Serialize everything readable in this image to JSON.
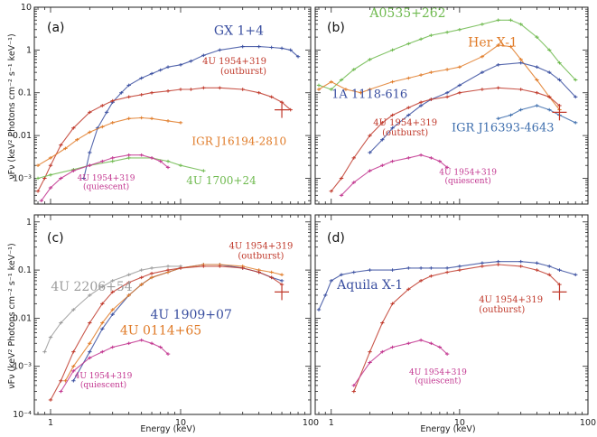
{
  "figure": {
    "ylabel": "νFν (keV² Photons cm⁻² s⁻¹ keV⁻¹)",
    "xlabel": "Energy (keV)",
    "x_ticks": [
      "1",
      "10",
      "100"
    ],
    "y_ticks_top": [
      "10",
      "1",
      "0.1",
      "0.01",
      "10⁻³"
    ],
    "y_ticks_bottom": [
      "1",
      "0.1",
      "0.01",
      "10⁻³",
      "10⁻⁴"
    ]
  },
  "chart_data": [
    {
      "type": "scatter",
      "panel": "(a)",
      "xlim": [
        0.75,
        100
      ],
      "ylim": [
        0.00025,
        10
      ],
      "xscale": "log",
      "yscale": "log",
      "series": [
        {
          "name": "GX 1+4",
          "color": "#3a4fa0",
          "label_lines": [
            "GX 1+4"
          ],
          "label_size": 14,
          "x": [
            1.8,
            2,
            2.3,
            2.7,
            3,
            3.5,
            4,
            5,
            6,
            7,
            8,
            10,
            12,
            15,
            20,
            30,
            40,
            50,
            60,
            70,
            80
          ],
          "y": [
            0.001,
            0.004,
            0.015,
            0.035,
            0.06,
            0.1,
            0.15,
            0.22,
            0.28,
            0.34,
            0.4,
            0.45,
            0.55,
            0.75,
            1.0,
            1.2,
            1.2,
            1.15,
            1.1,
            1.0,
            0.7
          ]
        },
        {
          "name": "4U 1954+319 (outburst)",
          "color": "#c0392b",
          "label_lines": [
            "4U 1954+319",
            "(outburst)"
          ],
          "label_size": 10,
          "x": [
            0.8,
            0.9,
            1,
            1.2,
            1.5,
            2,
            2.5,
            3,
            4,
            5,
            6,
            8,
            10,
            12,
            15,
            20,
            30,
            40,
            50,
            60,
            70
          ],
          "y": [
            0.0005,
            0.001,
            0.002,
            0.006,
            0.015,
            0.035,
            0.05,
            0.065,
            0.08,
            0.09,
            0.1,
            0.11,
            0.12,
            0.12,
            0.13,
            0.13,
            0.12,
            0.1,
            0.08,
            0.06,
            0.04
          ]
        },
        {
          "name": "IGR J16194-2810",
          "color": "#e07b28",
          "label_lines": [
            "IGR J16194-2810"
          ],
          "label_size": 12,
          "x": [
            0.8,
            1,
            1.3,
            1.6,
            2,
            2.5,
            3,
            4,
            5,
            6,
            8,
            10
          ],
          "y": [
            0.002,
            0.003,
            0.005,
            0.008,
            0.012,
            0.016,
            0.02,
            0.025,
            0.026,
            0.025,
            0.022,
            0.02
          ]
        },
        {
          "name": "4U 1700+24",
          "color": "#6fba4f",
          "label_lines": [
            "4U 1700+24"
          ],
          "label_size": 12,
          "x": [
            0.8,
            1,
            1.5,
            2,
            3,
            4,
            6,
            8,
            10,
            15
          ],
          "y": [
            0.001,
            0.0012,
            0.0016,
            0.002,
            0.0025,
            0.003,
            0.003,
            0.0025,
            0.002,
            0.0015
          ]
        },
        {
          "name": "4U 1954+319 (quiescent)",
          "color": "#c2358f",
          "label_lines": [
            "4U 1954+319",
            "(quiescent)"
          ],
          "label_size": 9,
          "x": [
            0.85,
            1,
            1.2,
            1.5,
            2,
            2.5,
            3,
            4,
            5,
            6,
            7,
            8
          ],
          "y": [
            0.0003,
            0.0006,
            0.001,
            0.0015,
            0.002,
            0.0025,
            0.003,
            0.0035,
            0.0035,
            0.003,
            0.0025,
            0.0018
          ]
        }
      ]
    },
    {
      "type": "scatter",
      "panel": "(b)",
      "xlim": [
        0.75,
        100
      ],
      "ylim": [
        0.00025,
        10
      ],
      "xscale": "log",
      "yscale": "log",
      "series": [
        {
          "name": "A0535+262",
          "color": "#6fba4f",
          "label_lines": [
            "A0535+262"
          ],
          "label_size": 14,
          "x": [
            0.8,
            1,
            1.2,
            1.5,
            2,
            3,
            4,
            5,
            6,
            8,
            10,
            15,
            20,
            25,
            30,
            40,
            50,
            60,
            80
          ],
          "y": [
            0.15,
            0.12,
            0.2,
            0.35,
            0.6,
            1.0,
            1.4,
            1.8,
            2.2,
            2.6,
            3.0,
            4.0,
            5.0,
            5.0,
            4.0,
            2.0,
            1.0,
            0.5,
            0.2
          ]
        },
        {
          "name": "Her X-1",
          "color": "#e07b28",
          "label_lines": [
            "Her X-1"
          ],
          "label_size": 14,
          "x": [
            0.8,
            1,
            1.3,
            1.7,
            2,
            3,
            4,
            5,
            6,
            8,
            10,
            15,
            20,
            25,
            30,
            40,
            50,
            60
          ],
          "y": [
            0.12,
            0.18,
            0.12,
            0.1,
            0.12,
            0.18,
            0.22,
            0.26,
            0.3,
            0.35,
            0.4,
            0.7,
            1.3,
            1.2,
            0.6,
            0.2,
            0.08,
            0.04
          ]
        },
        {
          "name": "1A 1118-616",
          "color": "#3a4fa0",
          "label_lines": [
            "1A 1118-616"
          ],
          "label_size": 13,
          "x": [
            2,
            2.5,
            3,
            4,
            5,
            6,
            8,
            10,
            15,
            20,
            30,
            40,
            50,
            60,
            80
          ],
          "y": [
            0.004,
            0.008,
            0.015,
            0.03,
            0.05,
            0.07,
            0.1,
            0.15,
            0.3,
            0.45,
            0.5,
            0.4,
            0.3,
            0.2,
            0.08
          ]
        },
        {
          "name": "4U 1954+319 (outburst)",
          "color": "#c0392b",
          "label_lines": [
            "4U 1954+319",
            "(outburst)"
          ],
          "label_size": 10,
          "x": [
            1,
            1.2,
            1.5,
            2,
            2.5,
            3,
            4,
            5,
            6,
            8,
            10,
            15,
            20,
            30,
            40,
            50,
            60
          ],
          "y": [
            0.0005,
            0.001,
            0.003,
            0.01,
            0.02,
            0.03,
            0.045,
            0.06,
            0.07,
            0.08,
            0.1,
            0.12,
            0.13,
            0.12,
            0.1,
            0.08,
            0.05
          ]
        },
        {
          "name": "IGR J16393-4643",
          "color": "#3f6fae",
          "label_lines": [
            "IGR J16393-4643"
          ],
          "label_size": 13,
          "x": [
            20,
            25,
            30,
            40,
            50,
            60,
            80
          ],
          "y": [
            0.025,
            0.03,
            0.04,
            0.05,
            0.04,
            0.03,
            0.02
          ]
        },
        {
          "name": "4U 1954+319 (quiescent)",
          "color": "#c2358f",
          "label_lines": [
            "4U 1954+319",
            "(quiescent)"
          ],
          "label_size": 9,
          "x": [
            1.2,
            1.5,
            2,
            2.5,
            3,
            4,
            5,
            6,
            7,
            8
          ],
          "y": [
            0.0004,
            0.0008,
            0.0015,
            0.002,
            0.0025,
            0.003,
            0.0035,
            0.003,
            0.0025,
            0.0018
          ]
        }
      ]
    },
    {
      "type": "scatter",
      "panel": "(c)",
      "xlim": [
        0.75,
        100
      ],
      "ylim": [
        0.0001,
        1.4
      ],
      "xscale": "log",
      "yscale": "log",
      "series": [
        {
          "name": "4U 2206+54",
          "color": "#9b9b9b",
          "label_lines": [
            "4U 2206+54"
          ],
          "label_size": 14,
          "x": [
            0.9,
            1,
            1.2,
            1.5,
            2,
            2.5,
            3,
            4,
            5,
            6,
            8,
            10
          ],
          "y": [
            0.002,
            0.004,
            0.008,
            0.015,
            0.03,
            0.045,
            0.06,
            0.08,
            0.1,
            0.11,
            0.12,
            0.12
          ]
        },
        {
          "name": "4U 1909+07",
          "color": "#3a4fa0",
          "label_lines": [
            "4U 1909+07"
          ],
          "label_size": 14,
          "x": [
            1.5,
            2,
            2.5,
            3,
            4,
            5,
            6,
            8,
            10,
            15,
            20,
            30,
            40,
            50,
            60
          ],
          "y": [
            0.0005,
            0.002,
            0.006,
            0.012,
            0.03,
            0.05,
            0.07,
            0.09,
            0.11,
            0.13,
            0.13,
            0.11,
            0.09,
            0.07,
            0.06
          ]
        },
        {
          "name": "4U 0114+65",
          "color": "#e07b28",
          "label_lines": [
            "4U 0114+65"
          ],
          "label_size": 14,
          "x": [
            1.3,
            1.5,
            2,
            2.5,
            3,
            4,
            5,
            6,
            8,
            10,
            15,
            20,
            30,
            40,
            50,
            60
          ],
          "y": [
            0.0005,
            0.001,
            0.003,
            0.008,
            0.015,
            0.03,
            0.05,
            0.07,
            0.09,
            0.11,
            0.13,
            0.13,
            0.12,
            0.1,
            0.09,
            0.08
          ]
        },
        {
          "name": "4U 1954+319 (outburst)",
          "color": "#c0392b",
          "label_lines": [
            "4U 1954+319",
            "(outburst)"
          ],
          "label_size": 10,
          "x": [
            1,
            1.2,
            1.5,
            2,
            2.5,
            3,
            4,
            5,
            6,
            8,
            10,
            15,
            20,
            30,
            40,
            50,
            60
          ],
          "y": [
            0.0002,
            0.0005,
            0.002,
            0.008,
            0.02,
            0.035,
            0.055,
            0.07,
            0.085,
            0.1,
            0.11,
            0.12,
            0.12,
            0.11,
            0.09,
            0.07,
            0.05
          ]
        },
        {
          "name": "4U 1954+319 (quiescent)",
          "color": "#c2358f",
          "label_lines": [
            "4U 1954+319",
            "(quiescent)"
          ],
          "label_size": 9,
          "x": [
            1.2,
            1.5,
            2,
            2.5,
            3,
            4,
            5,
            6,
            7,
            8
          ],
          "y": [
            0.0003,
            0.0008,
            0.0015,
            0.002,
            0.0025,
            0.003,
            0.0035,
            0.003,
            0.0025,
            0.0018
          ]
        }
      ]
    },
    {
      "type": "scatter",
      "panel": "(d)",
      "xlim": [
        0.75,
        100
      ],
      "ylim": [
        0.0001,
        1.4
      ],
      "xscale": "log",
      "yscale": "log",
      "series": [
        {
          "name": "Aquila X-1",
          "color": "#3a4fa0",
          "label_lines": [
            "Aquila X-1"
          ],
          "label_size": 14,
          "x": [
            0.8,
            0.9,
            1,
            1.2,
            1.5,
            2,
            3,
            4,
            5,
            6,
            8,
            10,
            15,
            20,
            30,
            40,
            50,
            60,
            80
          ],
          "y": [
            0.015,
            0.03,
            0.06,
            0.08,
            0.09,
            0.1,
            0.1,
            0.11,
            0.11,
            0.11,
            0.11,
            0.12,
            0.14,
            0.15,
            0.15,
            0.14,
            0.12,
            0.1,
            0.08
          ]
        },
        {
          "name": "4U 1954+319 (outburst)",
          "color": "#c0392b",
          "label_lines": [
            "4U 1954+319",
            "(outburst)"
          ],
          "label_size": 10,
          "x": [
            1.5,
            2,
            2.5,
            3,
            4,
            5,
            6,
            8,
            10,
            15,
            20,
            30,
            40,
            50,
            60
          ],
          "y": [
            0.0003,
            0.002,
            0.008,
            0.02,
            0.04,
            0.06,
            0.075,
            0.09,
            0.1,
            0.12,
            0.13,
            0.12,
            0.1,
            0.08,
            0.05
          ]
        },
        {
          "name": "4U 1954+319 (quiescent)",
          "color": "#c2358f",
          "label_lines": [
            "4U 1954+319",
            "(quiescent)"
          ],
          "label_size": 9,
          "x": [
            1.5,
            2,
            2.5,
            3,
            4,
            5,
            6,
            7,
            8
          ],
          "y": [
            0.0004,
            0.0012,
            0.002,
            0.0025,
            0.003,
            0.0035,
            0.003,
            0.0025,
            0.0018
          ]
        }
      ]
    }
  ]
}
